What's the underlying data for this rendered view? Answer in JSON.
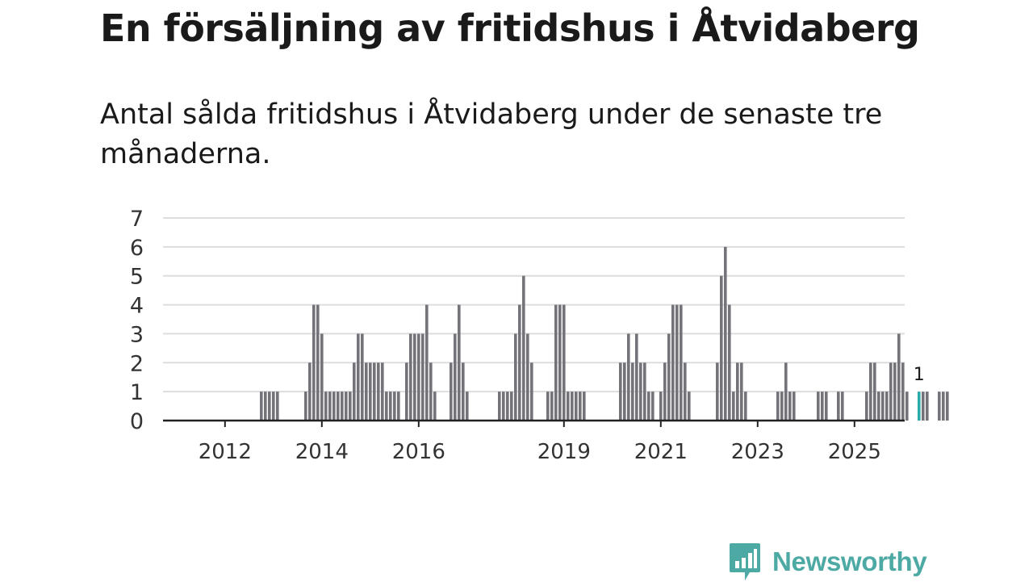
{
  "header": {
    "title": "En försäljning av fritidshus i Åtvidaberg",
    "subtitle": "Antal sålda fritidshus i Åtvidaberg under de senaste tre månaderna."
  },
  "brand": {
    "name": "Newsworthy",
    "color": "#4ca9a3"
  },
  "colors": {
    "bar": "#74737a",
    "highlight": "#29aaa9",
    "grid": "#dddddd",
    "axis": "#222222"
  },
  "chart_data": {
    "type": "bar",
    "title": "En försäljning av fritidshus i Åtvidaberg",
    "xlabel": "",
    "ylabel": "",
    "ylim": [
      0,
      7
    ],
    "yticks": [
      "0",
      "1",
      "2",
      "3",
      "4",
      "5",
      "6",
      "7"
    ],
    "x_start": "2011-10",
    "x_tick_labels": [
      {
        "label": "2012",
        "index": 3
      },
      {
        "label": "2014",
        "index": 27
      },
      {
        "label": "2016",
        "index": 51
      },
      {
        "label": "2019",
        "index": 87
      },
      {
        "label": "2021",
        "index": 111
      },
      {
        "label": "2023",
        "index": 135
      },
      {
        "label": "2025",
        "index": 159
      }
    ],
    "values": [
      0,
      0,
      0,
      0,
      0,
      0,
      0,
      0,
      0,
      0,
      0,
      0,
      1,
      1,
      1,
      1,
      1,
      0,
      0,
      0,
      0,
      0,
      0,
      1,
      2,
      4,
      4,
      3,
      1,
      1,
      1,
      1,
      1,
      1,
      1,
      2,
      3,
      3,
      2,
      2,
      2,
      2,
      2,
      1,
      1,
      1,
      1,
      0,
      2,
      3,
      3,
      3,
      3,
      4,
      2,
      1,
      0,
      0,
      0,
      2,
      3,
      4,
      2,
      1,
      0,
      0,
      0,
      0,
      0,
      0,
      0,
      1,
      1,
      1,
      1,
      3,
      4,
      5,
      3,
      2,
      0,
      0,
      0,
      1,
      1,
      4,
      4,
      4,
      1,
      1,
      1,
      1,
      1,
      0,
      0,
      0,
      0,
      0,
      0,
      0,
      0,
      2,
      2,
      3,
      2,
      3,
      2,
      2,
      1,
      1,
      0,
      1,
      2,
      3,
      4,
      4,
      4,
      2,
      1,
      0,
      0,
      0,
      0,
      0,
      0,
      2,
      5,
      6,
      4,
      1,
      2,
      2,
      1,
      0,
      0,
      0,
      0,
      0,
      0,
      0,
      1,
      1,
      2,
      1,
      1,
      0,
      0,
      0,
      0,
      0,
      1,
      1,
      1,
      0,
      0,
      1,
      1,
      0,
      0,
      0,
      0,
      0,
      1,
      2,
      2,
      1,
      1,
      1,
      2,
      2,
      3,
      2,
      1,
      0,
      0,
      1,
      1,
      1,
      0,
      0,
      1,
      1,
      1
    ],
    "annotations": [
      {
        "index": 175,
        "text": "1"
      }
    ]
  }
}
